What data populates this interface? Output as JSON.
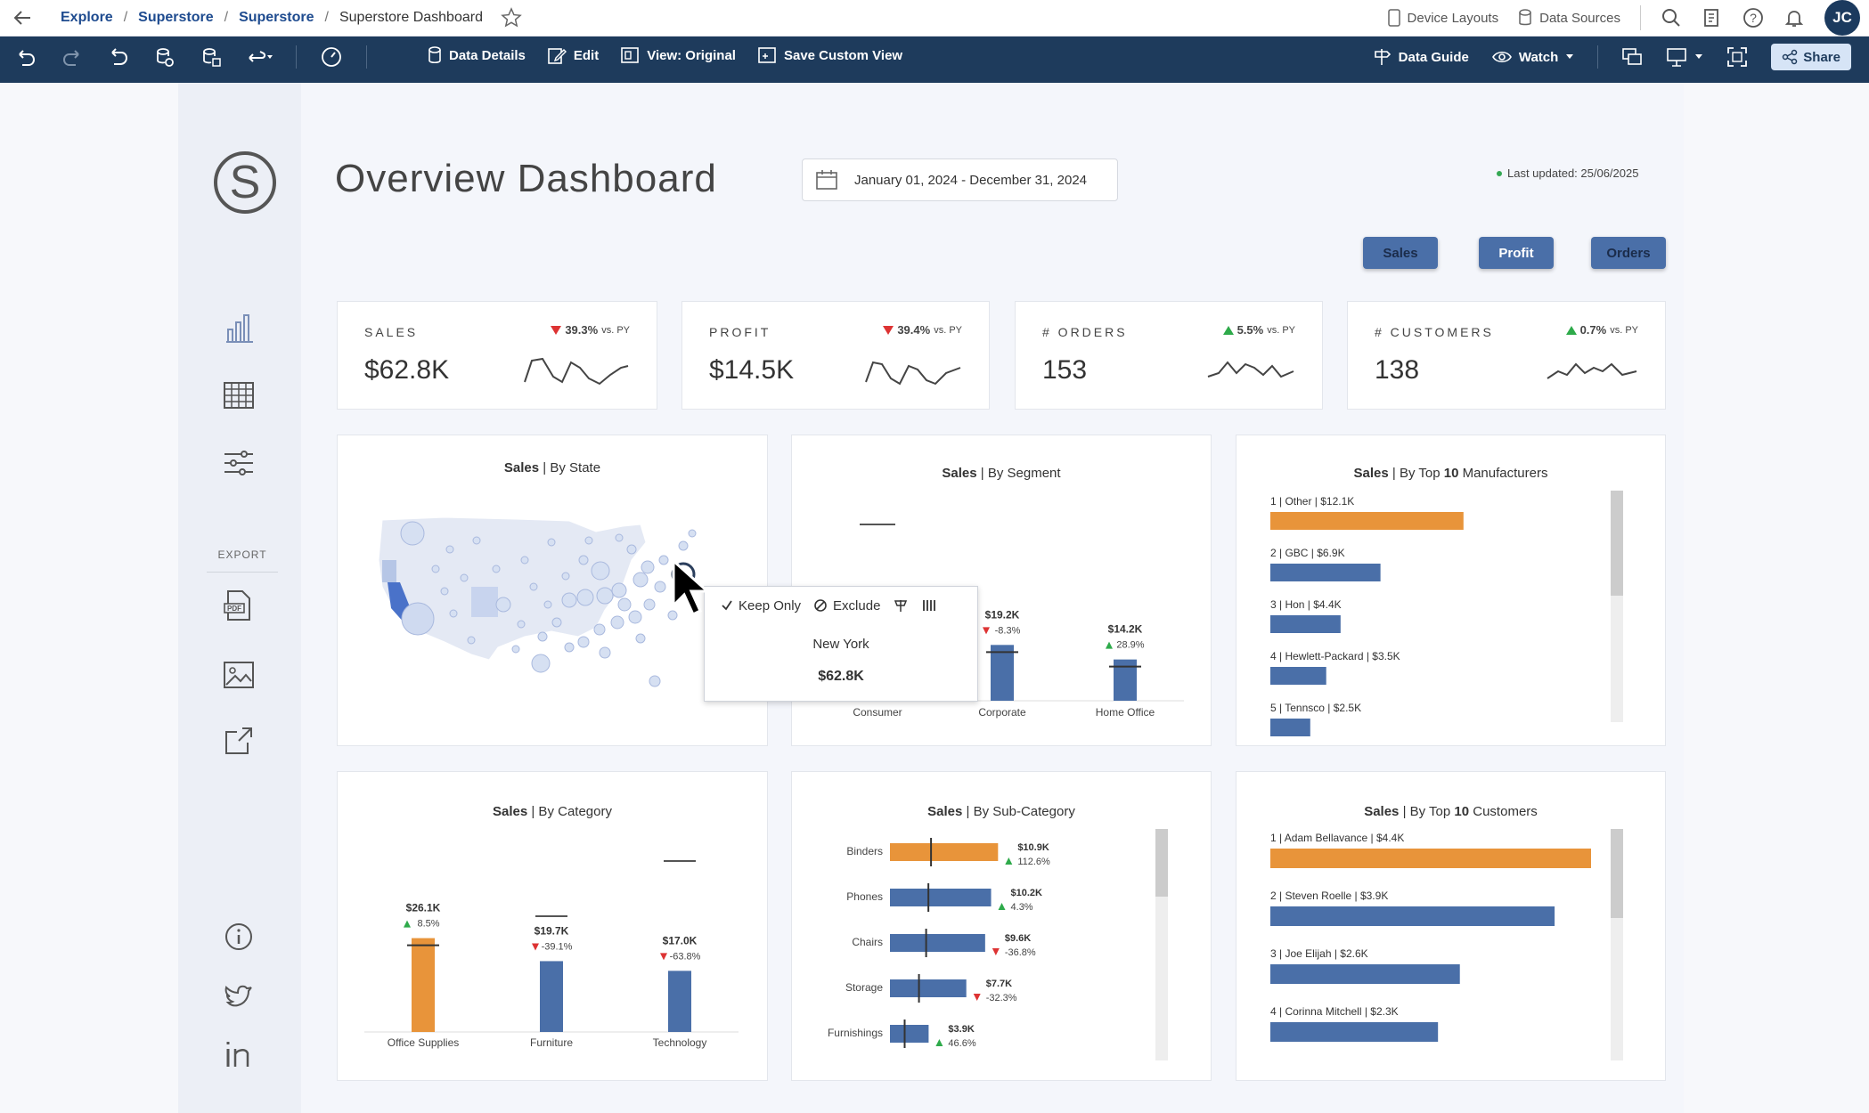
{
  "nav": {
    "breadcrumbs": [
      "Explore",
      "Superstore",
      "Superstore",
      "Superstore Dashboard"
    ],
    "device_layouts": "Device Layouts",
    "data_sources": "Data Sources",
    "avatar_initials": "JC"
  },
  "toolbar": {
    "data_details": "Data Details",
    "edit": "Edit",
    "view_original": "View: Original",
    "save_custom_view": "Save Custom View",
    "data_guide": "Data Guide",
    "watch": "Watch",
    "share": "Share"
  },
  "sidebar": {
    "logo_letter": "S",
    "export_label": "EXPORT"
  },
  "header": {
    "title": "Overview Dashboard",
    "date_range": "January 01, 2024 - December 31, 2024",
    "last_updated": "Last updated: 25/06/2025"
  },
  "toggles": [
    "Sales",
    "Profit",
    "Orders"
  ],
  "kpis": [
    {
      "label": "SALES",
      "value": "$62.8K",
      "change": "39.3%",
      "suffix": "vs. PY",
      "direction": "down"
    },
    {
      "label": "PROFIT",
      "value": "$14.5K",
      "change": "39.4%",
      "suffix": "vs. PY",
      "direction": "down"
    },
    {
      "label": "# ORDERS",
      "value": "153",
      "change": "5.5%",
      "suffix": "vs. PY",
      "direction": "up"
    },
    {
      "label": "# CUSTOMERS",
      "value": "138",
      "change": "0.7%",
      "suffix": "vs. PY",
      "direction": "up"
    }
  ],
  "panels": {
    "state": {
      "title_bold": "Sales",
      "title_rest": " | By State"
    },
    "segment": {
      "title_bold": "Sales",
      "title_rest": " | By Segment"
    },
    "manufacturers": {
      "title_bold": "Sales",
      "title_rest": " | By Top ",
      "title_num": "10",
      "title_tail": " Manufacturers"
    },
    "category": {
      "title_bold": "Sales",
      "title_rest": " | By Category"
    },
    "subcategory": {
      "title_bold": "Sales",
      "title_rest": " | By Sub-Category"
    },
    "customers": {
      "title_bold": "Sales",
      "title_rest": " | By Top ",
      "title_num": "10",
      "title_tail": " Customers"
    }
  },
  "tooltip": {
    "keep_only": "Keep Only",
    "exclude": "Exclude",
    "name": "New York",
    "value": "$62.8K"
  },
  "colors": {
    "accent_orange": "#e8943a",
    "bar_blue": "#4a6fa8",
    "toolbar_bg": "#1e3b5c",
    "map_dot": "#b9c8e6"
  },
  "chart_data": [
    {
      "type": "bar",
      "title": "Sales | By Segment",
      "categories": [
        "Consumer",
        "Corporate",
        "Home Office"
      ],
      "values": [
        null,
        19.2,
        14.2
      ],
      "labels": [
        "",
        "$19.2K",
        "$14.2K"
      ],
      "changes": [
        "",
        "-8.3%",
        "28.9%"
      ],
      "change_dirs": [
        "",
        "down",
        "up"
      ],
      "ylim": [
        0,
        62.8
      ]
    },
    {
      "type": "bar",
      "title": "Sales | By Top 10 Manufacturers",
      "categories": [
        "Other",
        "GBC",
        "Hon",
        "Hewlett-Packard",
        "Tennsco"
      ],
      "ranks": [
        1,
        2,
        3,
        4,
        5
      ],
      "values": [
        12.1,
        6.9,
        4.4,
        3.5,
        2.5
      ],
      "labels": [
        "$12.1K",
        "$6.9K",
        "$4.4K",
        "$3.5K",
        "$2.5K"
      ],
      "xlim": [
        0,
        24
      ]
    },
    {
      "type": "bar",
      "title": "Sales | By Category",
      "categories": [
        "Office Supplies",
        "Furniture",
        "Technology"
      ],
      "values": [
        26.1,
        19.7,
        17.0
      ],
      "labels": [
        "$26.1K",
        "$19.7K",
        "$17.0K"
      ],
      "changes": [
        "8.5%",
        "-39.1%",
        "-63.8%"
      ],
      "change_dirs": [
        "up",
        "down",
        "down"
      ],
      "ylim": [
        0,
        52
      ]
    },
    {
      "type": "bar",
      "title": "Sales | By Sub-Category",
      "categories": [
        "Binders",
        "Phones",
        "Chairs",
        "Storage",
        "Furnishings"
      ],
      "values": [
        10.9,
        10.2,
        9.6,
        7.7,
        3.9
      ],
      "labels": [
        "$10.9K",
        "$10.2K",
        "$9.6K",
        "$7.7K",
        "$3.9K"
      ],
      "changes": [
        "112.6%",
        "4.3%",
        "-36.8%",
        "-32.3%",
        "46.6%"
      ],
      "change_dirs": [
        "up",
        "up",
        "down",
        "down",
        "up"
      ],
      "xlim": [
        0,
        11.5
      ]
    },
    {
      "type": "bar",
      "title": "Sales | By Top 10 Customers",
      "categories": [
        "Adam Bellavance",
        "Steven Roelle",
        "Joe Elijah",
        "Corinna Mitchell"
      ],
      "ranks": [
        1,
        2,
        3,
        4
      ],
      "values": [
        4.4,
        3.9,
        2.6,
        2.3
      ],
      "labels": [
        "$4.4K",
        "$3.9K",
        "$2.6K",
        "$2.3K"
      ],
      "xlim": [
        0,
        4.4
      ]
    }
  ]
}
